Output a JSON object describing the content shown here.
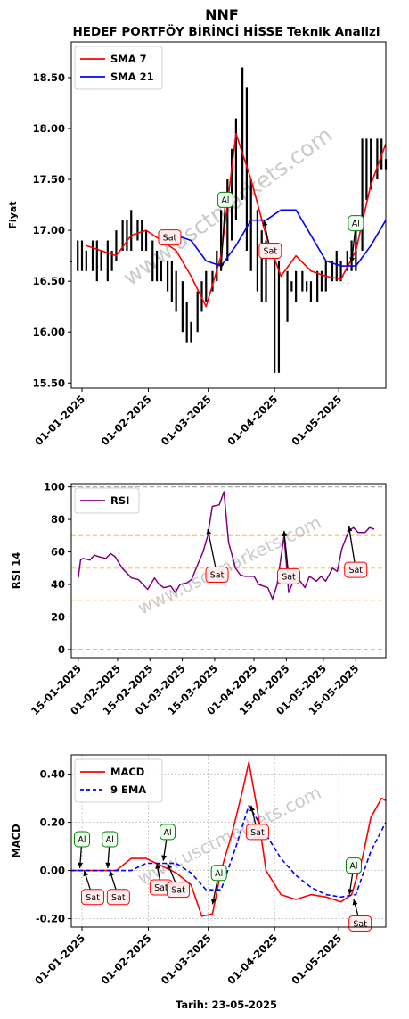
{
  "header": {
    "title": "NNF",
    "subtitle": "HEDEF PORTFÖY BİRİNCİ HİSSE Teknik Analizi"
  },
  "footer": {
    "date_label": "Tarih: 23-05-2025"
  },
  "watermark": "www.usctmarkets.com",
  "colors": {
    "sma7": "#ff0000",
    "sma21": "#0000ff",
    "rsi": "#800080",
    "macd": "#ff0000",
    "signal": "#0000ff",
    "buy_border": "#008000",
    "sell_border": "#ff0000"
  },
  "chart_data": [
    {
      "type": "candlestick",
      "ylabel": "Fiyat",
      "ylim": [
        15.45,
        18.85
      ],
      "yticks": [
        15.5,
        16.0,
        16.5,
        17.0,
        17.5,
        18.0,
        18.5
      ],
      "ytick_labels": [
        "15.50",
        "16.00",
        "16.50",
        "17.00",
        "17.50",
        "18.00",
        "18.50"
      ],
      "x_start": "2024-12-27",
      "x_end": "2025-05-23",
      "xticks": [
        "2025-01-01",
        "2025-02-01",
        "2025-03-01",
        "2025-04-01",
        "2025-05-01"
      ],
      "xtick_labels": [
        "01-01-2025",
        "01-02-2025",
        "01-03-2025",
        "01-04-2025",
        "01-05-2025"
      ],
      "legend": {
        "placement": "top-left",
        "entries": [
          "SMA 7",
          "SMA 21"
        ]
      },
      "ohlc": {
        "dates": [
          "2024-12-27",
          "2024-12-30",
          "2025-01-01",
          "2025-01-03",
          "2025-01-06",
          "2025-01-08",
          "2025-01-10",
          "2025-01-13",
          "2025-01-15",
          "2025-01-17",
          "2025-01-20",
          "2025-01-22",
          "2025-01-24",
          "2025-01-27",
          "2025-01-29",
          "2025-01-31",
          "2025-02-03",
          "2025-02-05",
          "2025-02-07",
          "2025-02-10",
          "2025-02-12",
          "2025-02-14",
          "2025-02-17",
          "2025-02-19",
          "2025-02-21",
          "2025-02-24",
          "2025-02-26",
          "2025-02-28",
          "2025-03-03",
          "2025-03-05",
          "2025-03-07",
          "2025-03-10",
          "2025-03-12",
          "2025-03-14",
          "2025-03-17",
          "2025-03-19",
          "2025-03-21",
          "2025-03-24",
          "2025-03-26",
          "2025-03-28",
          "2025-04-01",
          "2025-04-03",
          "2025-04-07",
          "2025-04-09",
          "2025-04-11",
          "2025-04-14",
          "2025-04-16",
          "2025-04-18",
          "2025-04-21",
          "2025-04-23",
          "2025-04-25",
          "2025-04-28",
          "2025-04-30",
          "2025-05-02",
          "2025-05-05",
          "2025-05-07",
          "2025-05-09",
          "2025-05-12",
          "2025-05-14",
          "2025-05-16",
          "2025-05-19",
          "2025-05-21",
          "2025-05-23"
        ],
        "high": [
          16.7,
          16.9,
          16.9,
          16.8,
          16.9,
          16.9,
          16.8,
          16.9,
          16.8,
          17.0,
          17.1,
          17.1,
          17.2,
          17.1,
          17.1,
          17.0,
          16.9,
          16.8,
          16.7,
          16.7,
          16.7,
          16.6,
          16.5,
          16.3,
          16.1,
          16.4,
          16.5,
          16.6,
          16.6,
          16.8,
          17.2,
          17.5,
          17.8,
          18.1,
          18.6,
          18.4,
          17.5,
          17.2,
          17.0,
          16.9,
          16.8,
          16.7,
          16.6,
          16.5,
          16.6,
          16.6,
          16.5,
          16.5,
          16.6,
          16.6,
          16.7,
          16.7,
          16.8,
          16.7,
          16.8,
          16.9,
          17.0,
          17.9,
          17.9,
          17.9,
          17.9,
          17.9,
          17.7
        ],
        "low": [
          16.7,
          16.6,
          16.6,
          16.6,
          16.6,
          16.5,
          16.6,
          16.5,
          16.6,
          16.7,
          16.8,
          16.8,
          16.8,
          16.9,
          16.8,
          16.8,
          16.5,
          16.5,
          16.5,
          16.4,
          16.3,
          16.2,
          16.0,
          15.9,
          15.9,
          16.0,
          16.2,
          16.3,
          16.4,
          16.5,
          16.6,
          16.7,
          16.9,
          17.1,
          17.3,
          16.8,
          16.6,
          16.4,
          16.3,
          16.3,
          15.6,
          15.6,
          16.1,
          16.4,
          16.3,
          16.4,
          16.4,
          16.3,
          16.3,
          16.4,
          16.4,
          16.5,
          16.5,
          16.5,
          16.6,
          16.6,
          16.6,
          16.8,
          17.3,
          17.4,
          17.5,
          17.6,
          17.6
        ]
      },
      "series": [
        {
          "name": "SMA 7",
          "x": [
            "2025-01-03",
            "2025-01-10",
            "2025-01-17",
            "2025-01-24",
            "2025-01-31",
            "2025-02-07",
            "2025-02-14",
            "2025-02-21",
            "2025-02-28",
            "2025-03-07",
            "2025-03-14",
            "2025-03-21",
            "2025-03-28",
            "2025-04-04",
            "2025-04-11",
            "2025-04-18",
            "2025-04-25",
            "2025-05-02",
            "2025-05-09",
            "2025-05-16",
            "2025-05-23"
          ],
          "values": [
            16.85,
            16.8,
            16.75,
            16.95,
            17.0,
            16.9,
            16.8,
            16.55,
            16.25,
            16.75,
            17.95,
            17.5,
            16.95,
            16.55,
            16.75,
            16.6,
            16.55,
            16.52,
            16.8,
            17.45,
            17.85
          ]
        },
        {
          "name": "SMA 21",
          "x": [
            "2025-02-07",
            "2025-02-14",
            "2025-02-21",
            "2025-02-28",
            "2025-03-07",
            "2025-03-14",
            "2025-03-21",
            "2025-03-28",
            "2025-04-04",
            "2025-04-11",
            "2025-04-18",
            "2025-04-25",
            "2025-05-02",
            "2025-05-09",
            "2025-05-16",
            "2025-05-23"
          ],
          "values": [
            16.92,
            16.95,
            16.9,
            16.7,
            16.65,
            16.85,
            17.1,
            17.1,
            17.2,
            17.2,
            16.95,
            16.7,
            16.65,
            16.65,
            16.85,
            17.1
          ]
        }
      ],
      "annotations": [
        {
          "label": "Sat",
          "kind": "sell",
          "x": "2025-02-14",
          "y": 16.92,
          "tx": "2025-02-11",
          "ty": 16.93
        },
        {
          "label": "Al",
          "kind": "buy",
          "x": "2025-03-07",
          "y": 16.62,
          "tx": "2025-03-09",
          "ty": 17.3
        },
        {
          "label": "Sat",
          "kind": "sell",
          "x": "2025-03-27",
          "y": 17.1,
          "tx": "2025-03-30",
          "ty": 16.8
        },
        {
          "label": "Al",
          "kind": "buy",
          "x": "2025-05-07",
          "y": 16.68,
          "tx": "2025-05-09",
          "ty": 17.07
        }
      ]
    },
    {
      "type": "line",
      "ylabel": "RSI 14",
      "ylim": [
        -5,
        102
      ],
      "yticks": [
        0,
        20,
        40,
        60,
        80,
        100
      ],
      "ytick_labels": [
        "0",
        "20",
        "40",
        "60",
        "80",
        "100"
      ],
      "hlines": [
        {
          "y": 100,
          "color": "#aaaaaa"
        },
        {
          "y": 70,
          "color": "#ffcc66"
        },
        {
          "y": 50,
          "color": "#ffcc66"
        },
        {
          "y": 30,
          "color": "#ffcc66"
        },
        {
          "y": 0,
          "color": "#aaaaaa"
        }
      ],
      "x_start": "2025-01-12",
      "x_end": "2025-05-28",
      "xticks": [
        "2025-01-15",
        "2025-02-01",
        "2025-02-15",
        "2025-03-01",
        "2025-03-15",
        "2025-04-01",
        "2025-04-15",
        "2025-05-01",
        "2025-05-15"
      ],
      "xtick_labels": [
        "15-01-2025",
        "01-02-2025",
        "15-02-2025",
        "01-03-2025",
        "15-03-2025",
        "01-04-2025",
        "15-04-2025",
        "01-05-2025",
        "15-05-2025"
      ],
      "legend": {
        "placement": "top-left",
        "entries": [
          "RSI"
        ]
      },
      "series": [
        {
          "name": "RSI",
          "x": [
            "2025-01-15",
            "2025-01-16",
            "2025-01-17",
            "2025-01-20",
            "2025-01-22",
            "2025-01-24",
            "2025-01-27",
            "2025-01-29",
            "2025-01-31",
            "2025-02-03",
            "2025-02-05",
            "2025-02-07",
            "2025-02-10",
            "2025-02-12",
            "2025-02-14",
            "2025-02-17",
            "2025-02-19",
            "2025-02-21",
            "2025-02-24",
            "2025-02-26",
            "2025-02-28",
            "2025-03-03",
            "2025-03-05",
            "2025-03-07",
            "2025-03-10",
            "2025-03-12",
            "2025-03-14",
            "2025-03-17",
            "2025-03-19",
            "2025-03-21",
            "2025-03-24",
            "2025-03-26",
            "2025-03-28",
            "2025-04-01",
            "2025-04-03",
            "2025-04-07",
            "2025-04-09",
            "2025-04-11",
            "2025-04-14",
            "2025-04-16",
            "2025-04-18",
            "2025-04-21",
            "2025-04-23",
            "2025-04-25",
            "2025-04-28",
            "2025-04-30",
            "2025-05-02",
            "2025-05-05",
            "2025-05-07",
            "2025-05-09",
            "2025-05-12",
            "2025-05-14",
            "2025-05-16",
            "2025-05-19",
            "2025-05-21",
            "2025-05-23"
          ],
          "values": [
            44,
            55,
            56,
            55,
            58,
            57,
            56,
            59,
            57,
            50,
            47,
            44,
            43,
            40,
            37,
            44,
            40,
            38,
            39,
            35,
            40,
            41,
            43,
            50,
            60,
            70,
            88,
            89,
            97,
            66,
            50,
            46,
            45,
            45,
            40,
            38,
            31,
            40,
            70,
            35,
            42,
            42,
            38,
            45,
            42,
            45,
            42,
            50,
            48,
            62,
            73,
            75,
            72,
            72,
            75,
            74
          ]
        }
      ],
      "annotations": [
        {
          "label": "Sat",
          "kind": "sell",
          "x": "2025-03-12",
          "y": 74,
          "tx": "2025-03-16",
          "ty": 46
        },
        {
          "label": "Sat",
          "kind": "sell",
          "x": "2025-04-14",
          "y": 73,
          "tx": "2025-04-16",
          "ty": 45
        },
        {
          "label": "Sat",
          "kind": "sell",
          "x": "2025-05-12",
          "y": 76,
          "tx": "2025-05-15",
          "ty": 49
        }
      ]
    },
    {
      "type": "line",
      "ylabel": "MACD",
      "ylim": [
        -0.235,
        0.48
      ],
      "yticks": [
        -0.2,
        0.0,
        0.2,
        0.4
      ],
      "ytick_labels": [
        "-0.20",
        "0.00",
        "0.20",
        "0.40"
      ],
      "grid": true,
      "x_start": "2024-12-27",
      "x_end": "2025-05-23",
      "xticks": [
        "2025-01-01",
        "2025-02-01",
        "2025-03-01",
        "2025-04-01",
        "2025-05-01"
      ],
      "xtick_labels": [
        "01-01-2025",
        "01-02-2025",
        "01-03-2025",
        "01-04-2025",
        "01-05-2025"
      ],
      "xlabel": "Tarih: 23-05-2025",
      "legend": {
        "placement": "top-left",
        "entries": [
          "MACD",
          "9 EMA"
        ]
      },
      "series": [
        {
          "name": "MACD",
          "x": [
            "2024-12-27",
            "2025-01-03",
            "2025-01-10",
            "2025-01-17",
            "2025-01-24",
            "2025-01-31",
            "2025-02-07",
            "2025-02-14",
            "2025-02-21",
            "2025-02-26",
            "2025-03-03",
            "2025-03-07",
            "2025-03-12",
            "2025-03-17",
            "2025-03-20",
            "2025-03-24",
            "2025-03-28",
            "2025-04-04",
            "2025-04-11",
            "2025-04-18",
            "2025-04-25",
            "2025-05-02",
            "2025-05-07",
            "2025-05-12",
            "2025-05-16",
            "2025-05-21",
            "2025-05-23"
          ],
          "values": [
            0.0,
            0.0,
            0.0,
            0.0,
            0.05,
            0.05,
            0.02,
            -0.01,
            -0.06,
            -0.19,
            -0.18,
            0.0,
            0.15,
            0.33,
            0.45,
            0.25,
            0.0,
            -0.1,
            -0.12,
            -0.1,
            -0.11,
            -0.13,
            -0.1,
            0.05,
            0.22,
            0.3,
            0.29
          ]
        },
        {
          "name": "9 EMA",
          "x": [
            "2024-12-27",
            "2025-01-03",
            "2025-01-10",
            "2025-01-17",
            "2025-01-24",
            "2025-01-31",
            "2025-02-07",
            "2025-02-14",
            "2025-02-21",
            "2025-02-28",
            "2025-03-07",
            "2025-03-14",
            "2025-03-20",
            "2025-03-28",
            "2025-04-04",
            "2025-04-11",
            "2025-04-18",
            "2025-04-25",
            "2025-05-02",
            "2025-05-09",
            "2025-05-16",
            "2025-05-23"
          ],
          "values": [
            0.0,
            0.0,
            0.0,
            0.0,
            0.0,
            0.03,
            0.03,
            0.03,
            -0.01,
            -0.08,
            -0.08,
            0.1,
            0.27,
            0.15,
            0.05,
            -0.02,
            -0.07,
            -0.1,
            -0.11,
            -0.1,
            0.08,
            0.2
          ]
        }
      ],
      "annotations": [
        {
          "label": "Al",
          "kind": "buy",
          "x": "2024-12-31",
          "y": 0.01,
          "tx": "2025-01-01",
          "ty": 0.13
        },
        {
          "label": "Sat",
          "kind": "sell",
          "x": "2025-01-02",
          "y": 0.0,
          "tx": "2025-01-06",
          "ty": -0.11
        },
        {
          "label": "Al",
          "kind": "buy",
          "x": "2025-01-13",
          "y": 0.01,
          "tx": "2025-01-14",
          "ty": 0.13
        },
        {
          "label": "Sat",
          "kind": "sell",
          "x": "2025-01-14",
          "y": 0.0,
          "tx": "2025-01-18",
          "ty": -0.11
        },
        {
          "label": "Sat",
          "kind": "sell",
          "x": "2025-02-05",
          "y": 0.03,
          "tx": "2025-02-07",
          "ty": -0.07
        },
        {
          "label": "Al",
          "kind": "buy",
          "x": "2025-02-08",
          "y": 0.04,
          "tx": "2025-02-10",
          "ty": 0.16
        },
        {
          "label": "Sat",
          "kind": "sell",
          "x": "2025-02-10",
          "y": 0.03,
          "tx": "2025-02-15",
          "ty": -0.08
        },
        {
          "label": "Al",
          "kind": "buy",
          "x": "2025-03-03",
          "y": -0.14,
          "tx": "2025-03-06",
          "ty": -0.01
        },
        {
          "label": "Sat",
          "kind": "sell",
          "x": "2025-03-21",
          "y": 0.27,
          "tx": "2025-03-24",
          "ty": 0.16
        },
        {
          "label": "Al",
          "kind": "buy",
          "x": "2025-05-06",
          "y": -0.1,
          "tx": "2025-05-08",
          "ty": 0.02
        },
        {
          "label": "Sat",
          "kind": "sell",
          "x": "2025-05-08",
          "y": -0.12,
          "tx": "2025-05-11",
          "ty": -0.22
        }
      ]
    }
  ]
}
